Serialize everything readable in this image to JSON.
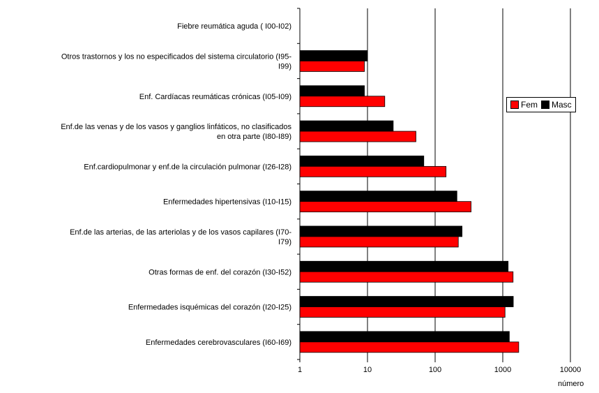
{
  "chart_data": {
    "type": "bar",
    "orientation": "horizontal",
    "x_scale": "log",
    "xlim": [
      1,
      10000
    ],
    "x_ticks": [
      "1",
      "10",
      "100",
      "1000",
      "10000"
    ],
    "xlabel": "número",
    "grid": "vertical gridlines at major ticks",
    "legend_position": "right",
    "categories": [
      [
        "Fiebre reumática aguda ( I00-I02)"
      ],
      [
        "Otros trastornos y los no especificados del sistema circulatorio (I95-",
        "I99)"
      ],
      [
        "Enf. Cardíacas reumáticas crónicas (I05-I09)"
      ],
      [
        "Enf.de las venas y de los vasos y ganglios linfáticos, no clasificados",
        "en otra parte (I80-I89)"
      ],
      [
        "Enf.cardiopulmonar y enf.de la circulación pulmonar (I26-I28)"
      ],
      [
        "Enfermedades hipertensivas (I10-I15)"
      ],
      [
        "Enf.de las arterias, de las arteriolas y de los vasos capilares (I70-",
        "I79)"
      ],
      [
        "Otras formas de enf. del corazón (I30-I52)"
      ],
      [
        "Enfermedades isquémicas del corazón (I20-I25)"
      ],
      [
        "Enfermedades cerebrovasculares (I60-I69)"
      ]
    ],
    "series": [
      {
        "name": "Masc",
        "color": "#000000",
        "values": [
          0,
          10,
          9,
          24,
          68,
          210,
          250,
          1200,
          1430,
          1250
        ]
      },
      {
        "name": "Fem",
        "color": "#ff0000",
        "values": [
          0,
          9,
          18,
          52,
          145,
          340,
          220,
          1420,
          1080,
          1720
        ]
      }
    ],
    "legend": [
      {
        "label": "Fem",
        "color": "#ff0000"
      },
      {
        "label": "Masc",
        "color": "#000000"
      }
    ]
  }
}
